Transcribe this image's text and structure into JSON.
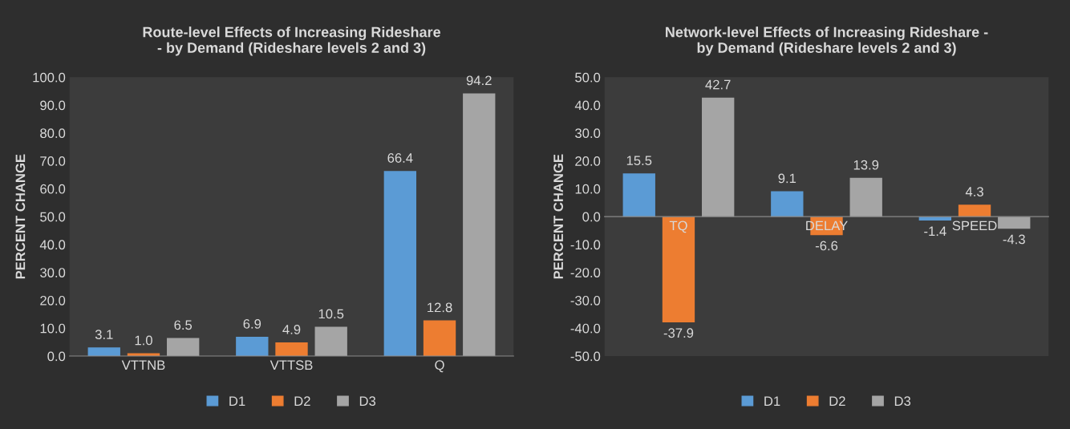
{
  "chart_data": [
    {
      "type": "bar",
      "title": "Route-level Effects of Increasing Rideshare\n- by Demand (Rideshare levels 2 and 3)",
      "ylabel": "PERCENT CHANGE",
      "categories": [
        "VTTNB",
        "VTTSB",
        "Q"
      ],
      "series": [
        {
          "name": "D1",
          "color": "#5b9bd5",
          "values": [
            3.1,
            6.9,
            66.4
          ],
          "value_labels": [
            "3.1",
            "6.9",
            "66.4"
          ]
        },
        {
          "name": "D2",
          "color": "#ed7d31",
          "values": [
            1.0,
            4.9,
            12.8
          ],
          "value_labels": [
            "1.0",
            "4.9",
            "12.8"
          ]
        },
        {
          "name": "D3",
          "color": "#a5a5a5",
          "values": [
            6.5,
            10.5,
            94.2
          ],
          "value_labels": [
            "6.5",
            "10.5",
            "94.2"
          ]
        }
      ],
      "ylim": [
        0,
        100
      ],
      "yticks": [
        {
          "value": 0,
          "label": "0.0"
        },
        {
          "value": 10,
          "label": "10.0"
        },
        {
          "value": 20,
          "label": "20.0"
        },
        {
          "value": 30,
          "label": "30.0"
        },
        {
          "value": 40,
          "label": "40.0"
        },
        {
          "value": 50,
          "label": "50.0"
        },
        {
          "value": 60,
          "label": "60.0"
        },
        {
          "value": 70,
          "label": "70.0"
        },
        {
          "value": 80,
          "label": "80.0"
        },
        {
          "value": 90,
          "label": "90.0"
        },
        {
          "value": 100,
          "label": "100.0"
        }
      ],
      "grid": false,
      "legend": "bottom"
    },
    {
      "type": "bar",
      "title": "Network-level Effects of Increasing Rideshare -\nby Demand (Rideshare levels 2 and 3)",
      "ylabel": "PERCENT CHANGE",
      "categories": [
        "TQ",
        "DELAY",
        "SPEED"
      ],
      "series": [
        {
          "name": "D1",
          "color": "#5b9bd5",
          "values": [
            15.5,
            9.1,
            -1.4
          ],
          "value_labels": [
            "15.5",
            "9.1",
            "-1.4"
          ]
        },
        {
          "name": "D2",
          "color": "#ed7d31",
          "values": [
            -37.9,
            -6.6,
            4.3
          ],
          "value_labels": [
            "-37.9",
            "-6.6",
            "4.3"
          ]
        },
        {
          "name": "D3",
          "color": "#a5a5a5",
          "values": [
            42.7,
            13.9,
            -4.3
          ],
          "value_labels": [
            "42.7",
            "13.9",
            "-4.3"
          ]
        }
      ],
      "ylim": [
        -50,
        50
      ],
      "yticks": [
        {
          "value": -50,
          "label": "-50.0"
        },
        {
          "value": -40,
          "label": "-40.0"
        },
        {
          "value": -30,
          "label": "-30.0"
        },
        {
          "value": -20,
          "label": "-20.0"
        },
        {
          "value": -10,
          "label": "-10.0"
        },
        {
          "value": 0,
          "label": "0.0"
        },
        {
          "value": 10,
          "label": "10.0"
        },
        {
          "value": 20,
          "label": "20.0"
        },
        {
          "value": 30,
          "label": "30.0"
        },
        {
          "value": 40,
          "label": "40.0"
        },
        {
          "value": 50,
          "label": "50.0"
        }
      ],
      "grid": false,
      "legend": "bottom"
    }
  ]
}
